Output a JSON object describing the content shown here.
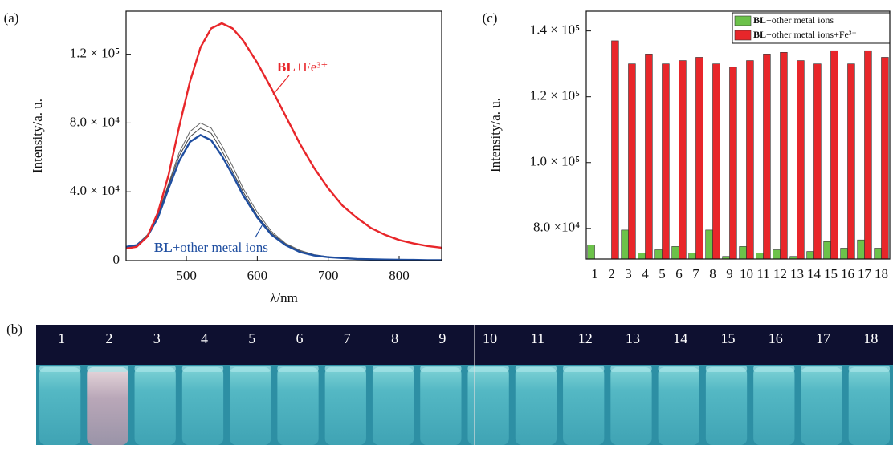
{
  "chart_data": [
    {
      "type": "line",
      "panel_label": "(a)",
      "xlabel": "λ/nm",
      "ylabel": "Intensity/a. u.",
      "xlim": [
        415,
        860
      ],
      "xticks": [
        500,
        600,
        700,
        800
      ],
      "ylim": [
        0,
        145000
      ],
      "yticks": [
        0,
        {
          "value": 40000,
          "label": "4.0 × 10⁴"
        },
        {
          "value": 80000,
          "label": "8.0 × 10⁴"
        },
        {
          "value": 120000,
          "label": "1.2 × 10⁵"
        }
      ],
      "x": [
        415,
        430,
        445,
        460,
        475,
        490,
        505,
        520,
        535,
        550,
        565,
        580,
        600,
        620,
        640,
        660,
        680,
        700,
        720,
        740,
        760,
        780,
        800,
        820,
        840,
        860
      ],
      "series": [
        {
          "color": "#666666",
          "values": [
            8000,
            9200,
            15000,
            27000,
            45000,
            63000,
            75000,
            80000,
            77000,
            67000,
            55000,
            42000,
            28000,
            17000,
            10000,
            6000,
            3500,
            2200,
            1600,
            1100,
            900,
            700,
            550,
            450,
            350,
            300
          ]
        },
        {
          "color": "#444444",
          "values": [
            8000,
            9100,
            14500,
            26000,
            44000,
            61000,
            72000,
            77000,
            74000,
            64000,
            52000,
            40000,
            26000,
            16000,
            9500,
            5500,
            3200,
            2100,
            1500,
            1000,
            850,
            650,
            500,
            420,
            320,
            300
          ]
        },
        {
          "name": "BL+other metal ions",
          "color": "#1f4ea0",
          "values": [
            8000,
            9000,
            14000,
            25000,
            42000,
            58000,
            69000,
            73000,
            70000,
            61000,
            50000,
            38000,
            25000,
            15000,
            9000,
            5000,
            3000,
            2000,
            1500,
            1000,
            800,
            600,
            500,
            400,
            300,
            300
          ]
        },
        {
          "name": "BL+Fe³⁺",
          "color": "#e8262a",
          "values": [
            7000,
            8000,
            14000,
            28000,
            50000,
            78000,
            104000,
            124000,
            135000,
            138000,
            135000,
            128000,
            115000,
            100000,
            84000,
            68000,
            54000,
            42000,
            32000,
            25000,
            19000,
            15000,
            12000,
            10000,
            8500,
            7500
          ]
        }
      ]
    },
    {
      "type": "bar",
      "panel_label": "(c)",
      "ylabel": "Intensity/a. u.",
      "categories": [
        "1",
        "2",
        "3",
        "4",
        "5",
        "6",
        "7",
        "8",
        "9",
        "10",
        "11",
        "12",
        "13",
        "14",
        "15",
        "16",
        "17",
        "18"
      ],
      "ylim": [
        70700,
        146000
      ],
      "yticks": [
        {
          "value": 80000,
          "label": "8.0 ×10⁴"
        },
        {
          "value": 100000,
          "label": "1.0 × 10⁵"
        },
        {
          "value": 120000,
          "label": "1.2 × 10⁵"
        },
        {
          "value": 140000,
          "label": "1.4 × 10⁵"
        }
      ],
      "legend": "upper right",
      "series": [
        {
          "name": "BL+other metal ions",
          "color": "#6cc24a",
          "values": [
            75000,
            null,
            79500,
            72500,
            73500,
            74500,
            72500,
            79500,
            71500,
            74500,
            72500,
            73500,
            71500,
            73000,
            76000,
            74000,
            76500,
            74000
          ]
        },
        {
          "name": "BL+other metal ions+Fe³⁺",
          "color": "#e8262a",
          "values": [
            null,
            137000,
            130000,
            133000,
            130000,
            131000,
            132000,
            130000,
            129000,
            131000,
            133000,
            133500,
            131000,
            130000,
            134000,
            130000,
            134000,
            132000
          ]
        }
      ]
    }
  ],
  "photo": {
    "panel_label": "(b)",
    "vial_labels": [
      "1",
      "2",
      "3",
      "4",
      "5",
      "6",
      "7",
      "8",
      "9",
      "10",
      "11",
      "12",
      "13",
      "14",
      "15",
      "16",
      "17",
      "18"
    ]
  }
}
